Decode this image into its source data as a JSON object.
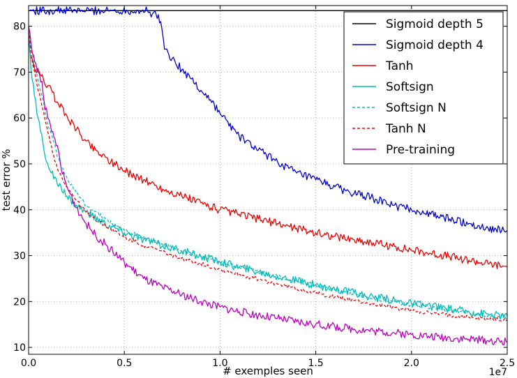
{
  "chart_data": {
    "type": "line",
    "title": "",
    "xlabel": "# exemples seen",
    "ylabel": "test error %",
    "x_multiplier_label": "1e7",
    "xlim": [
      0,
      2.5
    ],
    "ylim": [
      8.5,
      84.5
    ],
    "x_ticks": [
      0.0,
      0.5,
      1.0,
      1.5,
      2.0,
      2.5
    ],
    "x_tick_labels": [
      "0.0",
      "0.5",
      "1.0",
      "1.5",
      "2.0",
      "2.5"
    ],
    "y_ticks": [
      10,
      20,
      30,
      40,
      50,
      60,
      70,
      80
    ],
    "y_tick_labels": [
      "10",
      "20",
      "30",
      "40",
      "50",
      "60",
      "70",
      "80"
    ],
    "grid": true,
    "grid_style": "dotted",
    "legend_position": "upper-right",
    "series": [
      {
        "name": "Sigmoid depth 5",
        "color": "#000000",
        "dash": "solid",
        "x": [
          0,
          0.2,
          0.5,
          0.8,
          1.0,
          1.3,
          1.6,
          1.9,
          2.2,
          2.5
        ],
        "y": [
          83.4,
          83.4,
          83.4,
          83.4,
          83.4,
          83.4,
          83.4,
          83.4,
          83.4,
          83.4
        ]
      },
      {
        "name": "Sigmoid depth 4",
        "color": "#0000cc",
        "dash": "solid",
        "x": [
          0.0,
          0.3,
          0.62,
          0.64,
          0.66,
          0.69,
          0.71,
          0.75,
          0.8,
          0.85,
          0.9,
          0.95,
          1.0,
          1.1,
          1.2,
          1.3,
          1.4,
          1.5,
          1.6,
          1.7,
          1.8,
          1.9,
          2.0,
          2.1,
          2.2,
          2.3,
          2.4,
          2.5
        ],
        "y": [
          83.4,
          83.4,
          83.4,
          82.0,
          83.4,
          81.0,
          75.0,
          73.0,
          70.5,
          68.5,
          66.0,
          64.0,
          61.0,
          56.0,
          53.0,
          50.5,
          48.0,
          46.5,
          45.0,
          43.5,
          42.5,
          41.0,
          40.0,
          39.0,
          38.0,
          37.0,
          36.0,
          35.5
        ]
      },
      {
        "name": "Tanh",
        "color": "#ee0000",
        "dash": "solid",
        "x": [
          0.0,
          0.01,
          0.03,
          0.06,
          0.1,
          0.15,
          0.2,
          0.25,
          0.3,
          0.35,
          0.4,
          0.5,
          0.6,
          0.7,
          0.8,
          0.9,
          1.0,
          1.1,
          1.2,
          1.3,
          1.4,
          1.5,
          1.6,
          1.7,
          1.8,
          1.9,
          2.0,
          2.1,
          2.2,
          2.3,
          2.4,
          2.5
        ],
        "y": [
          78.0,
          73.0,
          71.0,
          69.5,
          67.0,
          63.5,
          60.5,
          57.5,
          55.0,
          53.0,
          51.5,
          48.5,
          46.5,
          44.5,
          43.0,
          41.5,
          40.0,
          39.0,
          38.0,
          37.0,
          36.0,
          35.0,
          34.2,
          33.5,
          32.8,
          32.0,
          31.2,
          30.5,
          29.8,
          29.0,
          28.2,
          27.5
        ]
      },
      {
        "name": "Softsign",
        "color": "#00bbbb",
        "dash": "solid",
        "x": [
          0.0,
          0.01,
          0.02,
          0.03,
          0.05,
          0.08,
          0.1,
          0.15,
          0.2,
          0.25,
          0.3,
          0.4,
          0.5,
          0.6,
          0.7,
          0.8,
          0.9,
          1.0,
          1.1,
          1.2,
          1.3,
          1.4,
          1.5,
          1.6,
          1.7,
          1.8,
          1.9,
          2.0,
          2.1,
          2.2,
          2.3,
          2.4,
          2.5
        ],
        "y": [
          80.0,
          72.0,
          68.0,
          65.0,
          60.0,
          53.0,
          50.0,
          45.5,
          43.0,
          41.0,
          39.5,
          37.0,
          35.0,
          33.5,
          32.2,
          31.0,
          29.8,
          28.7,
          27.5,
          26.5,
          25.5,
          24.5,
          23.6,
          22.7,
          21.8,
          21.0,
          20.3,
          19.6,
          19.0,
          18.4,
          17.8,
          17.3,
          16.8
        ]
      },
      {
        "name": "Softsign N",
        "color": "#00bbbb",
        "dash": "dashed",
        "x": [
          0.0,
          0.02,
          0.05,
          0.08,
          0.1,
          0.13,
          0.15,
          0.2,
          0.25,
          0.3,
          0.4,
          0.5,
          0.6,
          0.7,
          0.8,
          0.9,
          1.0,
          1.1,
          1.2,
          1.3,
          1.4,
          1.5,
          1.6,
          1.7,
          1.8,
          1.9,
          2.0,
          2.1,
          2.2,
          2.3,
          2.4,
          2.5
        ],
        "y": [
          79.0,
          74.0,
          68.0,
          63.0,
          58.5,
          55.0,
          51.5,
          47.0,
          43.5,
          41.0,
          38.0,
          35.5,
          34.0,
          32.5,
          31.0,
          29.8,
          28.7,
          27.6,
          26.5,
          25.5,
          24.5,
          23.5,
          22.5,
          21.6,
          20.8,
          20.0,
          19.3,
          18.7,
          18.1,
          17.5,
          17.0,
          16.5
        ]
      },
      {
        "name": "Tanh N",
        "color": "#ee0000",
        "dash": "dashed",
        "x": [
          0.0,
          0.02,
          0.05,
          0.08,
          0.1,
          0.13,
          0.15,
          0.2,
          0.25,
          0.3,
          0.4,
          0.5,
          0.6,
          0.7,
          0.8,
          0.9,
          1.0,
          1.1,
          1.2,
          1.3,
          1.4,
          1.5,
          1.6,
          1.7,
          1.8,
          1.9,
          2.0,
          2.1,
          2.2,
          2.3,
          2.4,
          2.5
        ],
        "y": [
          79.0,
          72.0,
          66.0,
          61.0,
          57.0,
          52.0,
          49.0,
          45.0,
          42.0,
          39.5,
          36.5,
          34.0,
          32.3,
          30.8,
          29.4,
          28.2,
          27.0,
          25.9,
          24.8,
          23.8,
          22.8,
          21.8,
          21.0,
          20.2,
          19.4,
          18.7,
          18.0,
          17.5,
          17.0,
          16.6,
          16.2,
          15.9
        ]
      },
      {
        "name": "Pre-training",
        "color": "#bb00bb",
        "dash": "solid",
        "x": [
          0.0,
          0.02,
          0.05,
          0.07,
          0.08,
          0.1,
          0.12,
          0.15,
          0.17,
          0.2,
          0.25,
          0.3,
          0.35,
          0.4,
          0.5,
          0.6,
          0.7,
          0.8,
          0.9,
          1.0,
          1.1,
          1.2,
          1.3,
          1.4,
          1.5,
          1.6,
          1.7,
          1.8,
          1.9,
          2.0,
          2.1,
          2.2,
          2.3,
          2.4,
          2.5
        ],
        "y": [
          80.0,
          74.0,
          70.0,
          68.0,
          64.0,
          60.0,
          57.0,
          54.0,
          49.0,
          45.0,
          40.5,
          37.0,
          34.5,
          32.5,
          28.5,
          25.0,
          23.0,
          21.5,
          20.0,
          18.8,
          17.8,
          17.0,
          16.3,
          15.6,
          15.0,
          14.5,
          14.0,
          13.6,
          13.2,
          12.8,
          12.4,
          12.1,
          11.8,
          11.5,
          11.2
        ]
      }
    ]
  }
}
